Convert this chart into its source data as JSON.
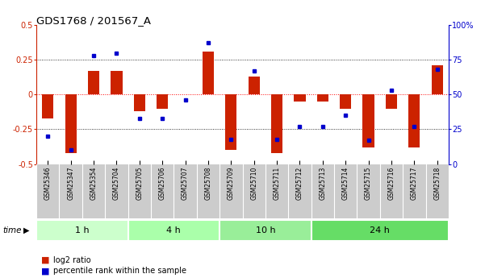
{
  "title": "GDS1768 / 201567_A",
  "samples": [
    "GSM25346",
    "GSM25347",
    "GSM25354",
    "GSM25704",
    "GSM25705",
    "GSM25706",
    "GSM25707",
    "GSM25708",
    "GSM25709",
    "GSM25710",
    "GSM25711",
    "GSM25712",
    "GSM25713",
    "GSM25714",
    "GSM25715",
    "GSM25716",
    "GSM25717",
    "GSM25718"
  ],
  "log2_ratio": [
    -0.17,
    -0.42,
    0.17,
    0.17,
    -0.12,
    -0.1,
    0.0,
    0.31,
    -0.4,
    0.13,
    -0.42,
    -0.05,
    -0.05,
    -0.1,
    -0.38,
    -0.1,
    -0.38,
    0.21
  ],
  "percentile_rank": [
    20,
    10,
    78,
    80,
    33,
    33,
    46,
    87,
    18,
    67,
    18,
    27,
    27,
    35,
    17,
    53,
    27,
    68
  ],
  "groups": [
    {
      "label": "1 h",
      "start": 0,
      "end": 4,
      "color": "#ccffcc"
    },
    {
      "label": "4 h",
      "start": 4,
      "end": 8,
      "color": "#aaffaa"
    },
    {
      "label": "10 h",
      "start": 8,
      "end": 12,
      "color": "#99ee99"
    },
    {
      "label": "24 h",
      "start": 12,
      "end": 18,
      "color": "#66dd66"
    }
  ],
  "bar_color": "#cc2200",
  "dot_color": "#0000cc",
  "ylim_left": [
    -0.5,
    0.5
  ],
  "ylim_right": [
    0,
    100
  ],
  "background_color": "#ffffff",
  "label_bg": "#cccccc",
  "bar_width": 0.5
}
